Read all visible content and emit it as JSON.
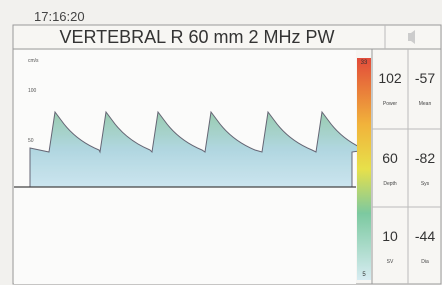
{
  "header": {
    "time": "17:16:20",
    "title": "VERTEBRAL R 60 mm 2 MHz PW"
  },
  "spectrum": {
    "unit": "cm/s",
    "scale_labels": [
      "100",
      "50"
    ],
    "color_bar_top": "33",
    "color_bar_bottom": "5"
  },
  "readouts": [
    {
      "value": "102",
      "label": "Power"
    },
    {
      "value": "-57",
      "label": "Mean"
    },
    {
      "value": "60",
      "label": "Depth"
    },
    {
      "value": "-82",
      "label": "Sys"
    },
    {
      "value": "10",
      "label": "SV"
    },
    {
      "value": "-44",
      "label": "Dia"
    }
  ]
}
